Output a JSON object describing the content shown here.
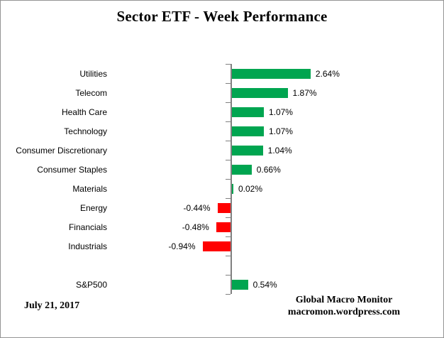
{
  "title": "Sector ETF - Week Performance",
  "footer": {
    "date": "July 21, 2017",
    "attribution_line1": "Global Macro Monitor",
    "attribution_line2": "macromon.wordpress.com"
  },
  "chart_data": {
    "type": "bar",
    "orientation": "horizontal",
    "title": "Sector ETF - Week Performance",
    "categories": [
      "Utilities",
      "Telecom",
      "Health Care",
      "Technology",
      "Consumer Discretionary",
      "Consumer Staples",
      "Materials",
      "Energy",
      "Financials",
      "Industrials",
      "S&P500"
    ],
    "values": [
      2.64,
      1.87,
      1.07,
      1.07,
      1.04,
      0.66,
      0.02,
      -0.44,
      -0.48,
      -0.94,
      0.54
    ],
    "data_labels": [
      "2.64%",
      "1.87%",
      "1.07%",
      "1.07%",
      "1.04%",
      "0.66%",
      "0.02%",
      "-0.44%",
      "-0.48%",
      "-0.94%",
      "0.54%"
    ],
    "gap_before_category": "S&P500",
    "xlabel": "",
    "ylabel": "",
    "grid": false,
    "legend": false,
    "data_label_position": "outside-end",
    "colors": {
      "positive": "#00A550",
      "negative": "#FF0000",
      "axis": "#808080"
    }
  }
}
